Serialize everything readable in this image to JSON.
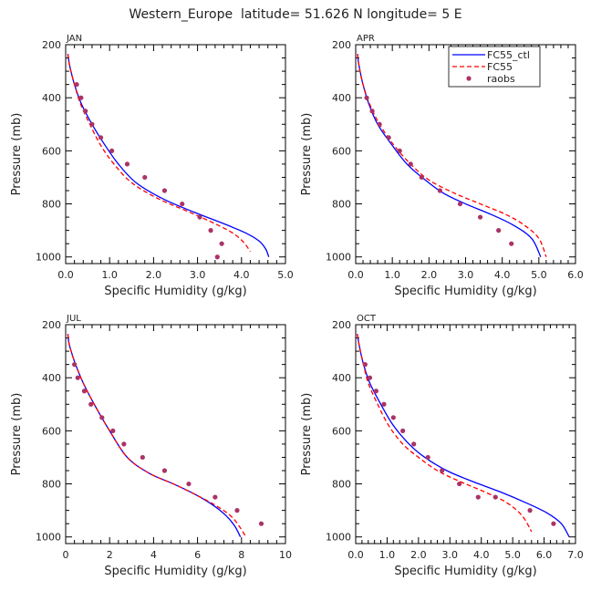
{
  "figure_title": "Western_Europe  latitude= 51.626 N longitude= 5 E",
  "legend": {
    "placement": "top-right of APR panel",
    "entries": [
      {
        "label": "FC55_ctl",
        "color": "#0000ff",
        "style": "solid"
      },
      {
        "label": "FC55",
        "color": "#ff0000",
        "style": "dashed"
      },
      {
        "label": "raobs",
        "color": "#aa3366",
        "style": "dots"
      }
    ]
  },
  "chart_data": [
    {
      "type": "line",
      "title": "JAN",
      "xlabel": "Specific Humidity (g/kg)",
      "ylabel": "Pressure (mb)",
      "xlim": [
        0,
        5
      ],
      "ylim": [
        200,
        1025
      ],
      "y_inverted": true,
      "grid": false,
      "x_ticks": [
        0,
        1,
        2,
        3,
        4,
        5
      ],
      "x_tick_labels": [
        "0.0",
        "1.0",
        "2.0",
        "3.0",
        "4.0",
        "5.0"
      ],
      "y_ticks": [
        200,
        400,
        600,
        800,
        1000
      ],
      "y_tick_labels": [
        "200",
        "400",
        "600",
        "800",
        "1000"
      ],
      "series": [
        {
          "name": "FC55_ctl",
          "color": "#0000ff",
          "style": "solid",
          "x": [
            0.05,
            0.08,
            0.12,
            0.2,
            0.35,
            0.6,
            0.9,
            1.2,
            1.6,
            2.2,
            2.9,
            3.6,
            4.1,
            4.4,
            4.55,
            4.62
          ],
          "y": [
            235,
            270,
            300,
            350,
            420,
            500,
            580,
            650,
            720,
            780,
            830,
            875,
            910,
            940,
            970,
            1000
          ]
        },
        {
          "name": "FC55",
          "color": "#ff0000",
          "style": "dashed",
          "x": [
            0.05,
            0.08,
            0.12,
            0.2,
            0.33,
            0.55,
            0.8,
            1.1,
            1.5,
            2.1,
            2.8,
            3.4,
            3.8,
            4.05,
            4.2
          ],
          "y": [
            235,
            270,
            300,
            350,
            420,
            500,
            580,
            650,
            720,
            780,
            830,
            875,
            910,
            945,
            980
          ]
        },
        {
          "name": "raobs",
          "color": "#aa3366",
          "style": "dots",
          "x": [
            0.25,
            0.35,
            0.45,
            0.6,
            0.8,
            1.05,
            1.4,
            1.8,
            2.25,
            2.65,
            3.05,
            3.3,
            3.55,
            3.45
          ],
          "y": [
            350,
            400,
            450,
            500,
            550,
            600,
            650,
            700,
            750,
            800,
            850,
            900,
            950,
            1000
          ]
        }
      ]
    },
    {
      "type": "line",
      "title": "APR",
      "xlabel": "Specific Humidity (g/kg)",
      "ylabel": "Pressure (mb)",
      "xlim": [
        0,
        6
      ],
      "ylim": [
        200,
        1025
      ],
      "y_inverted": true,
      "grid": false,
      "x_ticks": [
        0,
        1,
        2,
        3,
        4,
        5,
        6
      ],
      "x_tick_labels": [
        "0.0",
        "1.0",
        "2.0",
        "3.0",
        "4.0",
        "5.0",
        "6.0"
      ],
      "y_ticks": [
        200,
        400,
        600,
        800,
        1000
      ],
      "y_tick_labels": [
        "200",
        "400",
        "600",
        "800",
        "1000"
      ],
      "series": [
        {
          "name": "FC55_ctl",
          "color": "#0000ff",
          "style": "solid",
          "x": [
            0.05,
            0.08,
            0.12,
            0.2,
            0.35,
            0.6,
            1.0,
            1.4,
            1.9,
            2.4,
            3.0,
            3.7,
            4.3,
            4.8,
            5.05
          ],
          "y": [
            235,
            270,
            300,
            350,
            420,
            500,
            580,
            650,
            710,
            760,
            800,
            840,
            880,
            930,
            1000
          ]
        },
        {
          "name": "FC55",
          "color": "#ff0000",
          "style": "dashed",
          "x": [
            0.05,
            0.08,
            0.12,
            0.2,
            0.37,
            0.65,
            1.05,
            1.5,
            2.0,
            2.7,
            3.4,
            4.1,
            4.6,
            5.0,
            5.2
          ],
          "y": [
            235,
            270,
            300,
            350,
            420,
            500,
            580,
            650,
            710,
            760,
            800,
            840,
            880,
            930,
            1000
          ]
        },
        {
          "name": "raobs",
          "color": "#aa3366",
          "style": "dots",
          "x": [
            0.3,
            0.45,
            0.65,
            0.9,
            1.2,
            1.5,
            1.8,
            2.3,
            2.85,
            3.4,
            3.9,
            4.25
          ],
          "y": [
            400,
            450,
            500,
            550,
            600,
            650,
            700,
            750,
            800,
            850,
            900,
            950
          ]
        }
      ]
    },
    {
      "type": "line",
      "title": "JUL",
      "xlabel": "Specific Humidity (g/kg)",
      "ylabel": "Pressure (mb)",
      "xlim": [
        0,
        10
      ],
      "ylim": [
        200,
        1025
      ],
      "y_inverted": true,
      "grid": false,
      "x_ticks": [
        0,
        2,
        4,
        6,
        8,
        10
      ],
      "x_tick_labels": [
        "0",
        "2",
        "4",
        "6",
        "8",
        "10"
      ],
      "y_ticks": [
        200,
        400,
        600,
        800,
        1000
      ],
      "y_tick_labels": [
        "200",
        "400",
        "600",
        "800",
        "1000"
      ],
      "series": [
        {
          "name": "FC55_ctl",
          "color": "#0000ff",
          "style": "solid",
          "x": [
            0.1,
            0.15,
            0.25,
            0.45,
            0.8,
            1.3,
            2.0,
            2.8,
            3.8,
            4.9,
            5.9,
            6.7,
            7.3,
            7.7,
            7.95
          ],
          "y": [
            235,
            270,
            300,
            350,
            420,
            500,
            600,
            700,
            760,
            800,
            840,
            880,
            920,
            960,
            1000
          ]
        },
        {
          "name": "FC55",
          "color": "#ff0000",
          "style": "dashed",
          "x": [
            0.1,
            0.15,
            0.25,
            0.45,
            0.8,
            1.3,
            2.0,
            2.8,
            3.8,
            4.9,
            5.9,
            6.8,
            7.5,
            7.9,
            8.2
          ],
          "y": [
            235,
            270,
            300,
            350,
            420,
            500,
            600,
            700,
            760,
            800,
            840,
            880,
            920,
            960,
            1000
          ]
        },
        {
          "name": "raobs",
          "color": "#aa3366",
          "style": "dots",
          "x": [
            0.4,
            0.55,
            0.85,
            1.15,
            1.65,
            2.15,
            2.65,
            3.5,
            4.5,
            5.6,
            6.8,
            7.8,
            8.9
          ],
          "y": [
            350,
            400,
            450,
            500,
            550,
            600,
            650,
            700,
            750,
            800,
            850,
            900,
            950
          ]
        }
      ]
    },
    {
      "type": "line",
      "title": "OCT",
      "xlabel": "Specific Humidity (g/kg)",
      "ylabel": "Pressure (mb)",
      "xlim": [
        0,
        7
      ],
      "ylim": [
        200,
        1025
      ],
      "y_inverted": true,
      "grid": false,
      "x_ticks": [
        0,
        1,
        2,
        3,
        4,
        5,
        6,
        7
      ],
      "x_tick_labels": [
        "0.0",
        "1.0",
        "2.0",
        "3.0",
        "4.0",
        "5.0",
        "6.0",
        "7.0"
      ],
      "y_ticks": [
        200,
        400,
        600,
        800,
        1000
      ],
      "y_tick_labels": [
        "200",
        "400",
        "600",
        "800",
        "1000"
      ],
      "series": [
        {
          "name": "FC55_ctl",
          "color": "#0000ff",
          "style": "solid",
          "x": [
            0.05,
            0.1,
            0.15,
            0.25,
            0.45,
            0.8,
            1.2,
            1.7,
            2.2,
            2.9,
            3.7,
            4.6,
            5.4,
            6.1,
            6.55,
            6.8
          ],
          "y": [
            235,
            270,
            300,
            350,
            420,
            500,
            580,
            650,
            700,
            750,
            790,
            830,
            870,
            910,
            950,
            1000
          ]
        },
        {
          "name": "FC55",
          "color": "#ff0000",
          "style": "dashed",
          "x": [
            0.05,
            0.1,
            0.15,
            0.25,
            0.4,
            0.7,
            1.05,
            1.5,
            2.0,
            2.6,
            3.3,
            4.1,
            4.8,
            5.3,
            5.6
          ],
          "y": [
            235,
            270,
            300,
            350,
            420,
            500,
            580,
            650,
            700,
            750,
            790,
            830,
            870,
            920,
            980
          ]
        },
        {
          "name": "raobs",
          "color": "#aa3366",
          "style": "dots",
          "x": [
            0.3,
            0.45,
            0.65,
            0.9,
            1.2,
            1.5,
            1.85,
            2.3,
            2.75,
            3.3,
            3.9,
            4.45,
            5.55,
            6.3
          ],
          "y": [
            350,
            400,
            450,
            500,
            550,
            600,
            650,
            700,
            750,
            800,
            850,
            850,
            900,
            950
          ]
        }
      ]
    }
  ]
}
